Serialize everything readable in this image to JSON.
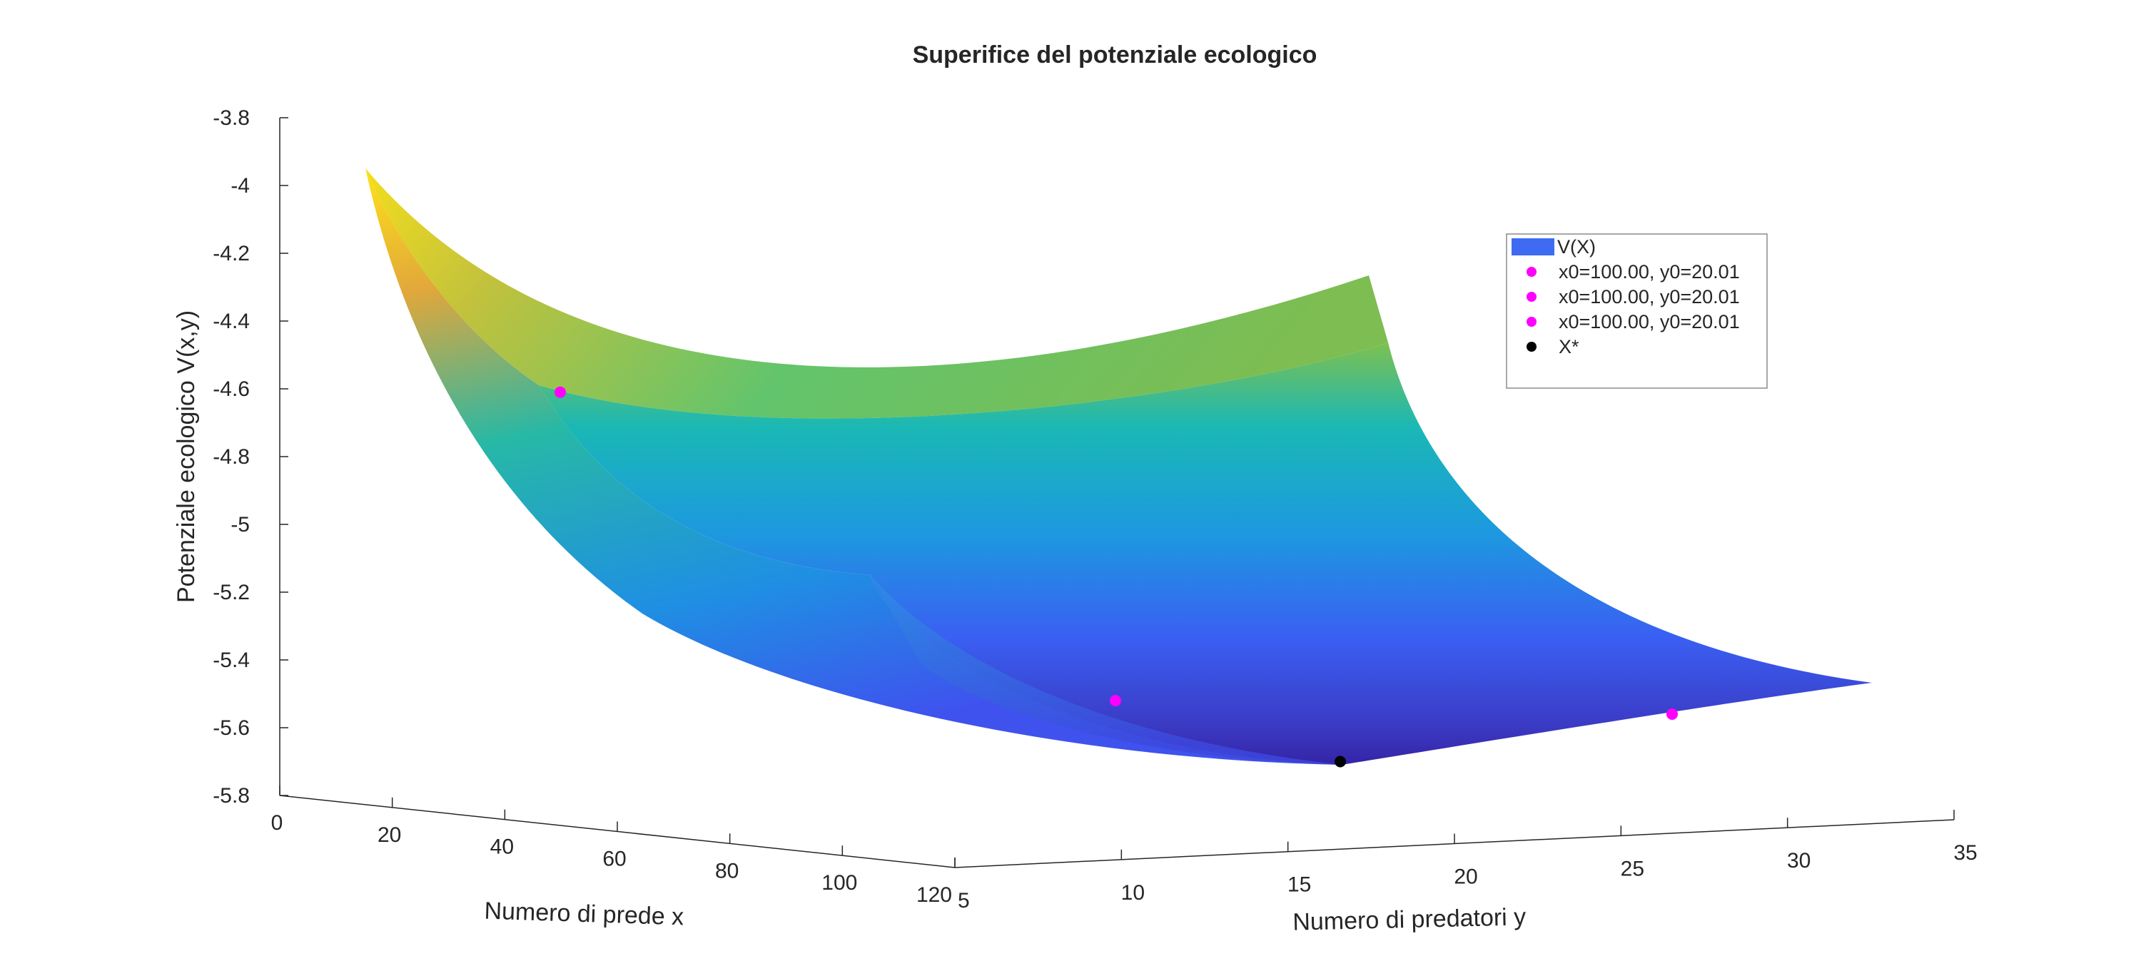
{
  "chart_data": {
    "type": "surface",
    "title": "Superifice del potenziale ecologico",
    "xlabel": "Numero di prede x",
    "ylabel": "Numero di predatori y",
    "zlabel": "Potenziale ecologico V(x,y)",
    "xlim": [
      0,
      120
    ],
    "ylim": [
      5,
      35
    ],
    "zlim": [
      -5.8,
      -3.8
    ],
    "x_ticks": [
      "0",
      "20",
      "40",
      "60",
      "80",
      "100",
      "120"
    ],
    "y_ticks": [
      "5",
      "10",
      "15",
      "20",
      "25",
      "30",
      "35"
    ],
    "z_ticks": [
      "-3.8",
      "-4",
      "-4.2",
      "-4.4",
      "-4.6",
      "-4.8",
      "-5",
      "-5.2",
      "-5.4",
      "-5.6",
      "-5.8"
    ],
    "colormap": "parula",
    "legend": {
      "position": "top-right",
      "entries": [
        {
          "label": "V(X)",
          "marker": "patch",
          "color": "#3e6bf2"
        },
        {
          "label": "x0=100.00, y0=20.01",
          "marker": "dot",
          "color": "#ff00ff"
        },
        {
          "label": "x0=100.00, y0=20.01",
          "marker": "dot",
          "color": "#ff00ff"
        },
        {
          "label": "x0=100.00, y0=20.01",
          "marker": "dot",
          "color": "#ff00ff"
        },
        {
          "label": "X*",
          "marker": "dot",
          "color": "#000000"
        }
      ]
    },
    "points": [
      {
        "series": "x0=100.00, y0=20.01",
        "color": "#ff00ff",
        "z": -4.61
      },
      {
        "series": "x0=100.00, y0=20.01",
        "color": "#ff00ff",
        "z": -5.52
      },
      {
        "series": "x0=100.00, y0=20.01",
        "color": "#ff00ff",
        "z": -5.56
      },
      {
        "series": "X*",
        "color": "#000000",
        "z": -5.7
      }
    ]
  }
}
